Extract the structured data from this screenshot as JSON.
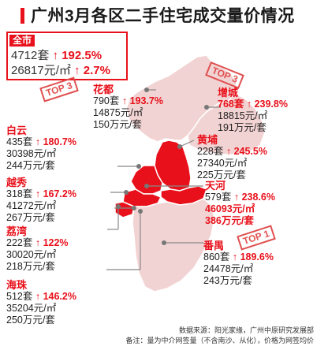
{
  "title": "广州3月各区二手住宅成交量价情况",
  "citywide": {
    "name": "全市",
    "units": "4712套",
    "units_change": "↑ 192.5%",
    "price": "26817元/㎡",
    "price_change": "↑ 2.7%"
  },
  "stamps": [
    "TOP 3",
    "TOP 3",
    "TOP 1"
  ],
  "districts": [
    {
      "name": "花都",
      "units": "790套",
      "units_change": "↑ 193.7%",
      "price": "14875元/㎡",
      "total": "150万元/套"
    },
    {
      "name": "增城",
      "units": "768套",
      "units_change": "↑ 239.8%",
      "price": "18815元/㎡",
      "total": "191万元/套"
    },
    {
      "name": "白云",
      "units": "435套",
      "units_change": "↑ 180.7%",
      "price": "30398元/㎡",
      "total": "244万元/套"
    },
    {
      "name": "黄埔",
      "units": "228套",
      "units_change": "↑ 245.5%",
      "price": "27340元/㎡",
      "total": "225万元/套"
    },
    {
      "name": "越秀",
      "units": "318套",
      "units_change": "↑ 167.2%",
      "price": "41272元/㎡",
      "total": "267万元/套"
    },
    {
      "name": "天河",
      "units": "579套",
      "units_change": "↑ 238.6%",
      "price": "46093元/㎡",
      "total": "386万元/套"
    },
    {
      "name": "荔湾",
      "units": "222套",
      "units_change": "↑ 122%",
      "price": "30020元/㎡",
      "total": "218万元/套"
    },
    {
      "name": "番禺",
      "units": "860套",
      "units_change": "↑ 189.6%",
      "price": "24478元/㎡",
      "total": "243万元/套"
    },
    {
      "name": "海珠",
      "units": "512套",
      "units_change": "↑ 146.2%",
      "price": "35204元/㎡",
      "total": "250万元/套"
    }
  ],
  "footer": {
    "source": "数据来源：阳光家缘，广州中原研究发展部",
    "note": "备注：量为中介网签量（不含南沙、从化），价格为网签均价"
  },
  "colors": {
    "accent": "#e8101a",
    "map_light": "#f2d3d3",
    "map_dark": "#e8101a"
  }
}
